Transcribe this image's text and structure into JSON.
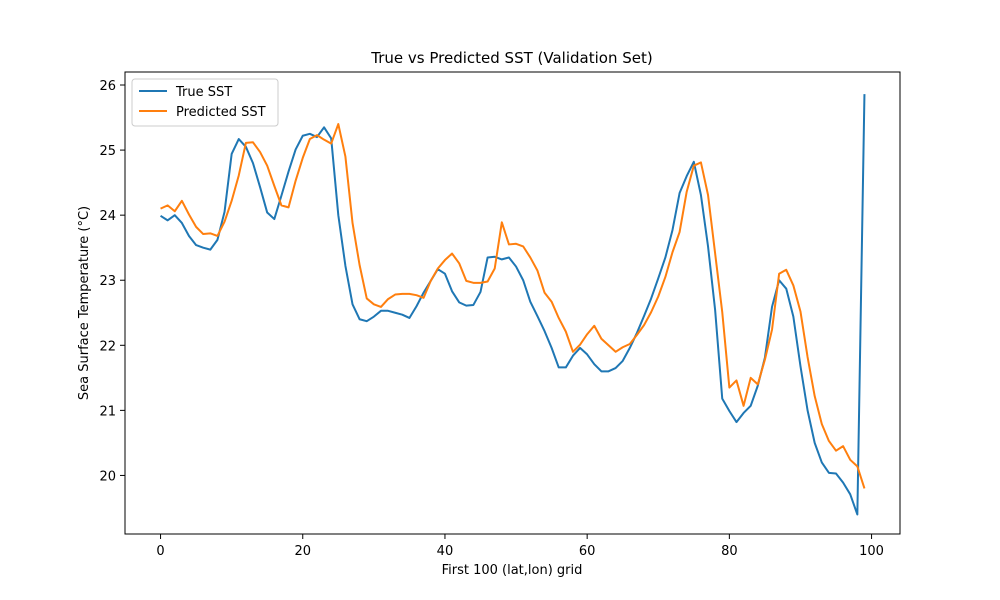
{
  "chart_data": {
    "type": "line",
    "title": "True vs Predicted SST (Validation Set)",
    "xlabel": "First 100 (lat,lon) grid",
    "ylabel": "Sea Surface Temperature (°C)",
    "xlim": [
      -5,
      104
    ],
    "ylim": [
      19.1,
      26.2
    ],
    "xticks": [
      0,
      20,
      40,
      60,
      80,
      100
    ],
    "yticks": [
      20,
      21,
      22,
      23,
      24,
      25,
      26
    ],
    "grid": false,
    "legend_position": "upper-left",
    "series": [
      {
        "name": "True SST",
        "color": "#1f77b4",
        "values": [
          23.99,
          23.92,
          24.0,
          23.88,
          23.68,
          23.54,
          23.5,
          23.47,
          23.62,
          24.05,
          24.94,
          25.17,
          25.05,
          24.8,
          24.43,
          24.04,
          23.94,
          24.3,
          24.67,
          25.01,
          25.22,
          25.25,
          25.2,
          25.35,
          25.18,
          24.0,
          23.22,
          22.63,
          22.4,
          22.37,
          22.44,
          22.53,
          22.53,
          22.5,
          22.47,
          22.42,
          22.6,
          22.81,
          22.99,
          23.17,
          23.1,
          22.83,
          22.66,
          22.61,
          22.62,
          22.82,
          23.35,
          23.36,
          23.32,
          23.35,
          23.21,
          23.0,
          22.67,
          22.45,
          22.22,
          21.96,
          21.66,
          21.66,
          21.84,
          21.96,
          21.86,
          21.71,
          21.6,
          21.6,
          21.65,
          21.76,
          21.96,
          22.19,
          22.45,
          22.72,
          23.03,
          23.35,
          23.77,
          24.34,
          24.6,
          24.82,
          24.31,
          23.52,
          22.54,
          21.18,
          20.99,
          20.82,
          20.96,
          21.07,
          21.38,
          21.81,
          22.59,
          23.0,
          22.87,
          22.44,
          21.68,
          21.0,
          20.5,
          20.2,
          20.04,
          20.03,
          19.89,
          19.71,
          19.4,
          25.86
        ]
      },
      {
        "name": "Predicted SST",
        "color": "#ff7f0e",
        "values": [
          24.1,
          24.15,
          24.06,
          24.22,
          24.01,
          23.82,
          23.71,
          23.72,
          23.68,
          23.9,
          24.22,
          24.61,
          25.11,
          25.12,
          24.97,
          24.76,
          24.45,
          24.15,
          24.12,
          24.53,
          24.88,
          25.17,
          25.23,
          25.16,
          25.1,
          25.4,
          24.9,
          23.88,
          23.23,
          22.72,
          22.63,
          22.59,
          22.71,
          22.78,
          22.79,
          22.79,
          22.77,
          22.73,
          22.99,
          23.18,
          23.31,
          23.41,
          23.26,
          22.99,
          22.96,
          22.96,
          22.98,
          23.18,
          23.89,
          23.55,
          23.56,
          23.52,
          23.35,
          23.15,
          22.81,
          22.67,
          22.42,
          22.21,
          21.9,
          22.01,
          22.17,
          22.3,
          22.1,
          22.0,
          21.9,
          21.97,
          22.02,
          22.16,
          22.31,
          22.51,
          22.75,
          23.05,
          23.43,
          23.74,
          24.36,
          24.76,
          24.81,
          24.31,
          23.41,
          22.51,
          21.35,
          21.46,
          21.07,
          21.5,
          21.4,
          21.78,
          22.24,
          23.1,
          23.16,
          22.92,
          22.52,
          21.82,
          21.22,
          20.79,
          20.53,
          20.38,
          20.45,
          20.24,
          20.14,
          19.8
        ]
      }
    ]
  }
}
